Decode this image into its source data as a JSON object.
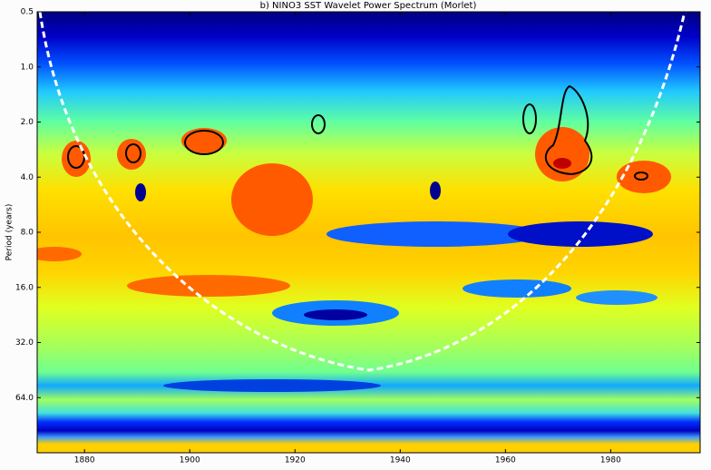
{
  "chart_data": {
    "type": "contour",
    "title": "b) NINO3 SST Wavelet Power Spectrum (Morlet)",
    "y_label": "Period (years)",
    "xlim": [
      1871,
      1997
    ],
    "xticks": [
      1880,
      1900,
      1920,
      1940,
      1960,
      1980
    ],
    "ylim": [
      0.5,
      128
    ],
    "y_log2": true,
    "y_inverted": true,
    "yticks": [
      0.5,
      {
        "value": 1,
        "label": "1.0"
      },
      {
        "value": 2,
        "label": "2.0"
      },
      {
        "value": 4,
        "label": "4.0"
      },
      {
        "value": 8,
        "label": "8.0"
      },
      {
        "value": 16,
        "label": "16.0"
      },
      {
        "value": 32,
        "label": "32.0"
      },
      {
        "value": 64,
        "label": "64.0"
      }
    ]
  }
}
